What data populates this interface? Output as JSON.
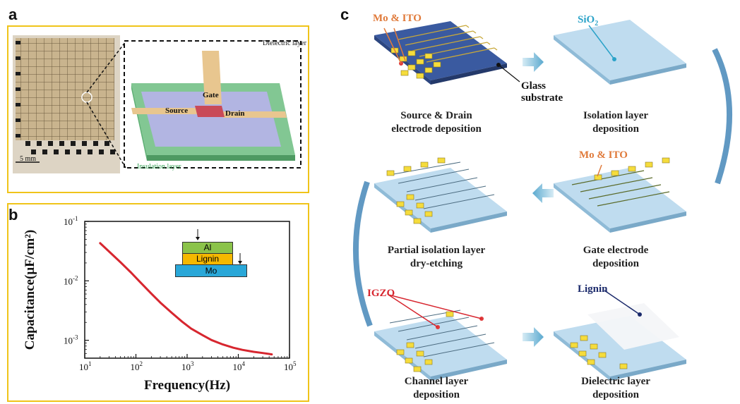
{
  "panels": {
    "a": {
      "letter": "a",
      "scale_bar": "5 mm",
      "labels": {
        "dielectric": "Dielectric layer",
        "gate": "Gate",
        "source": "Source",
        "drain": "Drain",
        "insulation": "Insulation layer"
      }
    },
    "b": {
      "letter": "b",
      "inset_layers": [
        "Al",
        "Lignin",
        "Mo"
      ]
    },
    "c": {
      "letter": "c",
      "steps": [
        {
          "line1": "Source & Drain",
          "line2": "electrode deposition"
        },
        {
          "line1": "Isolation layer",
          "line2": "deposition"
        },
        {
          "line1": "Partial isolation layer",
          "line2": "dry-etching"
        },
        {
          "line1": "Gate electrode",
          "line2": "deposition"
        },
        {
          "line1": "Channel layer",
          "line2": "deposition"
        },
        {
          "line1": "Dielectric layer",
          "line2": "deposition"
        }
      ],
      "callouts": {
        "mo_ito_1": "Mo & ITO",
        "glass_1": "Glass",
        "glass_2": "substrate",
        "sio2_main": "SiO",
        "sio2_sub": "2",
        "mo_ito_2": "Mo & ITO",
        "igzo": "IGZO",
        "lignin": "Lignin"
      }
    }
  },
  "chart_data": {
    "type": "line",
    "title": "",
    "xlabel": "Frequency(Hz)",
    "ylabel": "Capacitance(μF/cm²)",
    "x_scale": "log",
    "y_scale": "log",
    "xlim": [
      10,
      100000
    ],
    "ylim": [
      0.0005,
      0.1
    ],
    "x_ticks": [
      {
        "base": "10",
        "exp": "1"
      },
      {
        "base": "10",
        "exp": "2"
      },
      {
        "base": "10",
        "exp": "3"
      },
      {
        "base": "10",
        "exp": "4"
      },
      {
        "base": "10",
        "exp": "5"
      }
    ],
    "y_ticks": [
      {
        "base": "10",
        "exp": "-3"
      },
      {
        "base": "10",
        "exp": "-2"
      },
      {
        "base": "10",
        "exp": "-1"
      }
    ],
    "series": [
      {
        "color": "#d7262f",
        "x": [
          20,
          30,
          50,
          80,
          120,
          200,
          300,
          500,
          800,
          1200,
          2000,
          3000,
          5000,
          8000,
          12000,
          20000,
          30000,
          45000
        ],
        "y": [
          0.043,
          0.031,
          0.0205,
          0.0138,
          0.0096,
          0.0061,
          0.0043,
          0.0029,
          0.00205,
          0.00157,
          0.00122,
          0.00101,
          0.00085,
          0.00075,
          0.00069,
          0.00064,
          0.00061,
          0.00058
        ]
      }
    ]
  }
}
